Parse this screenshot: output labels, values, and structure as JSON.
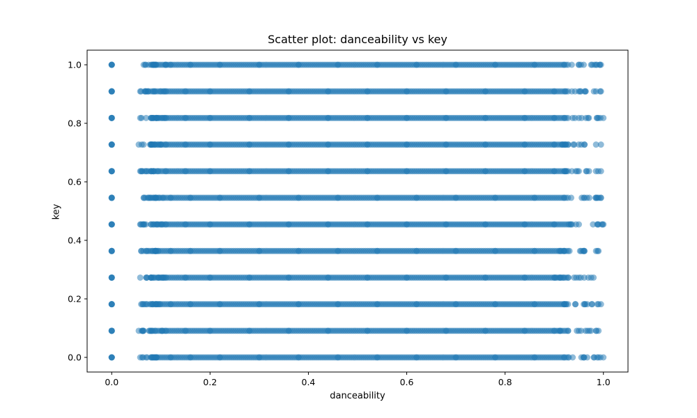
{
  "chart_data": {
    "type": "scatter",
    "title": "Scatter plot: danceability vs key",
    "xlabel": "danceability",
    "ylabel": "key",
    "xlim": [
      -0.05,
      1.05
    ],
    "ylim": [
      -0.05,
      1.05
    ],
    "grid": false,
    "x_ticks": [
      0.0,
      0.2,
      0.4,
      0.6,
      0.8,
      1.0
    ],
    "x_tick_labels": [
      "0.0",
      "0.2",
      "0.4",
      "0.6",
      "0.8",
      "1.0"
    ],
    "y_ticks": [
      0.0,
      0.2,
      0.4,
      0.6,
      0.8,
      1.0
    ],
    "y_tick_labels": [
      "0.0",
      "0.2",
      "0.4",
      "0.6",
      "0.8",
      "1.0"
    ],
    "marker_color": "#1f77b4",
    "marker_alpha": 0.5,
    "series": [
      {
        "points_by_key": [
          {
            "key": 0.0,
            "zero_point": true,
            "x": [
              0.058,
              0.07,
              0.09,
              0.12,
              0.16,
              0.22,
              0.3,
              0.38,
              0.46,
              0.54,
              0.62,
              0.7,
              0.78,
              0.86,
              0.92,
              0.96,
              0.99,
              1.0
            ]
          },
          {
            "key": 0.0909,
            "zero_point": true,
            "x": [
              0.055,
              0.065,
              0.08,
              0.11,
              0.15,
              0.2,
              0.28,
              0.36,
              0.44,
              0.52,
              0.6,
              0.68,
              0.76,
              0.84,
              0.9,
              0.95,
              0.985,
              0.99
            ]
          },
          {
            "key": 0.1818,
            "zero_point": true,
            "x": [
              0.06,
              0.07,
              0.09,
              0.12,
              0.16,
              0.22,
              0.3,
              0.38,
              0.46,
              0.54,
              0.62,
              0.7,
              0.78,
              0.86,
              0.92,
              0.96,
              0.99,
              0.995
            ]
          },
          {
            "key": 0.2727,
            "zero_point": true,
            "x": [
              0.058,
              0.07,
              0.085,
              0.11,
              0.15,
              0.2,
              0.28,
              0.36,
              0.44,
              0.52,
              0.6,
              0.68,
              0.76,
              0.84,
              0.9,
              0.95,
              0.975,
              0.98
            ]
          },
          {
            "key": 0.3636,
            "zero_point": true,
            "x": [
              0.06,
              0.07,
              0.09,
              0.12,
              0.16,
              0.22,
              0.3,
              0.38,
              0.46,
              0.54,
              0.62,
              0.7,
              0.78,
              0.86,
              0.92,
              0.96,
              0.985,
              0.99
            ]
          },
          {
            "key": 0.4545,
            "zero_point": true,
            "x": [
              0.058,
              0.065,
              0.08,
              0.11,
              0.15,
              0.2,
              0.28,
              0.36,
              0.44,
              0.52,
              0.6,
              0.68,
              0.76,
              0.84,
              0.9,
              0.95,
              0.99,
              1.0
            ]
          },
          {
            "key": 0.5455,
            "zero_point": true,
            "x": [
              0.065,
              0.075,
              0.09,
              0.12,
              0.16,
              0.22,
              0.3,
              0.38,
              0.46,
              0.54,
              0.62,
              0.7,
              0.78,
              0.86,
              0.92,
              0.96,
              0.985,
              0.995
            ]
          },
          {
            "key": 0.6364,
            "zero_point": true,
            "x": [
              0.058,
              0.07,
              0.085,
              0.11,
              0.15,
              0.2,
              0.28,
              0.36,
              0.44,
              0.52,
              0.6,
              0.68,
              0.76,
              0.84,
              0.9,
              0.95,
              0.985,
              0.995
            ]
          },
          {
            "key": 0.7273,
            "zero_point": true,
            "x": [
              0.055,
              0.065,
              0.08,
              0.11,
              0.15,
              0.2,
              0.28,
              0.36,
              0.44,
              0.52,
              0.6,
              0.68,
              0.76,
              0.84,
              0.9,
              0.95,
              0.985,
              0.995
            ]
          },
          {
            "key": 0.8182,
            "zero_point": true,
            "x": [
              0.058,
              0.07,
              0.085,
              0.11,
              0.15,
              0.2,
              0.28,
              0.36,
              0.44,
              0.52,
              0.6,
              0.68,
              0.76,
              0.84,
              0.9,
              0.95,
              0.99,
              1.0
            ]
          },
          {
            "key": 0.9091,
            "zero_point": true,
            "x": [
              0.058,
              0.07,
              0.085,
              0.11,
              0.15,
              0.2,
              0.28,
              0.36,
              0.44,
              0.52,
              0.6,
              0.68,
              0.76,
              0.84,
              0.9,
              0.95,
              0.985,
              0.995
            ]
          },
          {
            "key": 1.0,
            "zero_point": true,
            "x": [
              0.065,
              0.075,
              0.09,
              0.12,
              0.16,
              0.22,
              0.3,
              0.38,
              0.46,
              0.54,
              0.62,
              0.7,
              0.78,
              0.86,
              0.92,
              0.96,
              0.985,
              0.995
            ]
          }
        ],
        "dense_range": [
          0.08,
          0.93
        ]
      }
    ]
  }
}
